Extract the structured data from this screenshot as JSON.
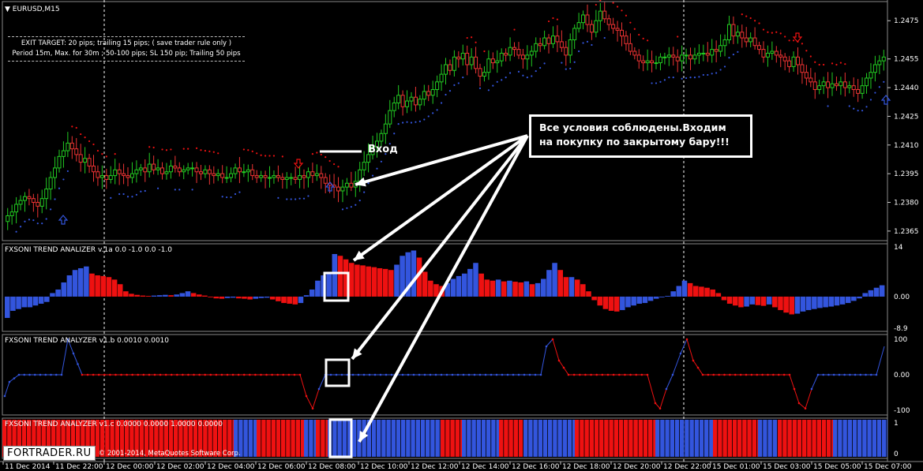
{
  "window": {
    "title": "EURUSD,M15"
  },
  "exit_note": {
    "line1": "EXIT TARGET: 20 pips; trailing 15 pips; ( save trader rule only )",
    "line2": "Period 15m, Max. for 30m ; 50-100 pips; SL 150 pip; Trailing 50 pips"
  },
  "annotations": {
    "entry_label": "Вход",
    "callout": "Все условия соблюдены.Входим на покупку по закрытому бару!!!"
  },
  "indicators": {
    "a": {
      "label": "FXSONI TREND ANALIZER v.1a 0.0 -1.0 0.0 -1.0"
    },
    "b": {
      "label": "FXSONI TREND ANALYZER v1.b 0.0010 0.0010"
    },
    "c": {
      "label": "FXSONI TREND ANALYZER v1.c 0.0000 0.0000 1.0000 0.0000"
    }
  },
  "watermark": {
    "logo": "FORTRADER.RU",
    "copyright": "© 2001-2014, MetaQuotes Software Corp."
  },
  "colors": {
    "bull": "#3355dd",
    "bear": "#ee1111",
    "candle_up": "#22cc22",
    "candle_down": "#ee3333",
    "background": "#000000",
    "grid": "#ffffff"
  },
  "chart_data": [
    {
      "type": "candlestick",
      "title": "EURUSD,M15",
      "y_ticks": [
        "1.2475",
        "1.2455",
        "1.2440",
        "1.2425",
        "1.2410",
        "1.2395",
        "1.2380",
        "1.2365"
      ],
      "ylim": [
        1.236,
        1.2485
      ],
      "x_ticks": [
        "11 Dec 2014",
        "11 Dec 22:00",
        "12 Dec 00:00",
        "12 Dec 02:00",
        "12 Dec 04:00",
        "12 Dec 06:00",
        "12 Dec 08:00",
        "12 Dec 10:00",
        "12 Dec 12:00",
        "12 Dec 14:00",
        "12 Dec 16:00",
        "12 Dec 18:00",
        "12 Dec 20:00",
        "12 Dec 22:00",
        "15 Dec 01:00",
        "15 Dec 03:00",
        "15 Dec 05:00",
        "15 Dec 07:00"
      ],
      "closes": [
        1.2373,
        1.2375,
        1.2379,
        1.2381,
        1.2383,
        1.2382,
        1.238,
        1.2378,
        1.2382,
        1.2387,
        1.2393,
        1.2398,
        1.2404,
        1.2407,
        1.2411,
        1.2408,
        1.2405,
        1.2401,
        1.2403,
        1.2399,
        1.2396,
        1.2393,
        1.2394,
        1.2392,
        1.2394,
        1.2397,
        1.2395,
        1.2394,
        1.2393,
        1.2395,
        1.2397,
        1.2398,
        1.2396,
        1.24,
        1.2397,
        1.2398,
        1.2395,
        1.2396,
        1.2399,
        1.2398,
        1.2396,
        1.2397,
        1.2398,
        1.2398,
        1.2396,
        1.2395,
        1.2397,
        1.2395,
        1.2394,
        1.2395,
        1.2393,
        1.2393,
        1.2395,
        1.2398,
        1.2396,
        1.2396,
        1.2397,
        1.2394,
        1.2393,
        1.2394,
        1.2393,
        1.2393,
        1.2394,
        1.2393,
        1.2392,
        1.2393,
        1.2393,
        1.2392,
        1.2394,
        1.2393,
        1.2396,
        1.2394,
        1.2395,
        1.2393,
        1.239,
        1.2389,
        1.2388,
        1.2386,
        1.2388,
        1.239,
        1.2388,
        1.2391,
        1.2397,
        1.2401,
        1.2405,
        1.2409,
        1.2412,
        1.2416,
        1.2421,
        1.2428,
        1.2432,
        1.2436,
        1.243,
        1.2433,
        1.2435,
        1.2431,
        1.2434,
        1.2438,
        1.2436,
        1.2439,
        1.2443,
        1.2447,
        1.2452,
        1.2449,
        1.2456,
        1.2455,
        1.2458,
        1.2452,
        1.2456,
        1.245,
        1.2446,
        1.2448,
        1.2455,
        1.2453,
        1.2454,
        1.2458,
        1.2457,
        1.2461,
        1.246,
        1.2457,
        1.2455,
        1.2457,
        1.2459,
        1.2463,
        1.2462,
        1.2466,
        1.2463,
        1.2467,
        1.2464,
        1.2461,
        1.2457,
        1.2465,
        1.2471,
        1.2474,
        1.2478,
        1.2473,
        1.2469,
        1.2475,
        1.248,
        1.2476,
        1.2473,
        1.2471,
        1.247,
        1.2467,
        1.2463,
        1.2459,
        1.2457,
        1.2454,
        1.2453,
        1.2454,
        1.2453,
        1.2453,
        1.2456,
        1.2456,
        1.2457,
        1.2456,
        1.2454,
        1.2457,
        1.2457,
        1.2455,
        1.2457,
        1.2458,
        1.2458,
        1.2457,
        1.246,
        1.2459,
        1.2462,
        1.2465,
        1.2473,
        1.2467,
        1.2469,
        1.2466,
        1.2464,
        1.2466,
        1.2462,
        1.246,
        1.2456,
        1.2458,
        1.2459,
        1.2457,
        1.2456,
        1.2454,
        1.2451,
        1.2456,
        1.2452,
        1.2448,
        1.2445,
        1.2443,
        1.2439,
        1.2441,
        1.2443,
        1.244,
        1.2442,
        1.2441,
        1.2443,
        1.244,
        1.2441,
        1.2439,
        1.2437,
        1.2441,
        1.2445,
        1.2448,
        1.2452,
        1.2454,
        1.2456
      ]
    },
    {
      "type": "bar",
      "title": "FXSONI TREND ANALIZER v.1a",
      "y_ticks": [
        "14",
        "0.00",
        "-8.9"
      ],
      "ylim": [
        -8.9,
        14
      ],
      "values": [
        -6,
        -4,
        -3.5,
        -3,
        -3,
        -2.5,
        -2,
        -1.5,
        1,
        2,
        4,
        6,
        7.5,
        8,
        8.5,
        6.5,
        6,
        5.8,
        5.5,
        4.8,
        3.5,
        1.5,
        0.8,
        0.5,
        0.3,
        0.2,
        0.3,
        0.4,
        0.5,
        0.4,
        0.6,
        1,
        1.5,
        1,
        0.6,
        0.3,
        -0.2,
        -0.5,
        -0.6,
        -0.4,
        -0.3,
        -0.5,
        -0.6,
        -0.8,
        -0.6,
        -0.4,
        -0.3,
        -0.8,
        -1.3,
        -1.8,
        -2,
        -2.2,
        -1.8,
        0.4,
        2,
        4.5,
        6,
        7,
        12,
        11.5,
        10.5,
        9.5,
        9,
        8.8,
        8.5,
        8.3,
        8,
        7.8,
        7.5,
        9,
        11.5,
        12.5,
        13,
        11,
        7,
        4.5,
        3.5,
        3,
        3.8,
        5,
        5.8,
        6.5,
        7.8,
        9.5,
        6.5,
        4.8,
        4.5,
        4.8,
        4.3,
        4.5,
        4.2,
        4,
        4.3,
        3.5,
        3.8,
        5,
        7.5,
        9.5,
        7.5,
        5.5,
        5.5,
        4.8,
        3.5,
        1.5,
        -1,
        -2.5,
        -3.5,
        -4,
        -4.2,
        -3.8,
        -3,
        -2.5,
        -2,
        -1.8,
        -1.2,
        -0.6,
        -0.2,
        0.2,
        1.5,
        3,
        4.5,
        3.8,
        3,
        2.8,
        2.5,
        2,
        1,
        -1,
        -2,
        -2.5,
        -3,
        -2.8,
        -2.2,
        -2.4,
        -2.6,
        -2.2,
        -3,
        -3.8,
        -4.5,
        -5,
        -4.8,
        -4.2,
        -3.8,
        -3.5,
        -3.2,
        -3,
        -2.8,
        -2.5,
        -2.2,
        -1.8,
        -1.2,
        -0.5,
        1,
        1.8,
        2.5,
        3.2
      ]
    },
    {
      "type": "line",
      "title": "FXSONI TREND ANALYZER v1.b",
      "y_ticks": [
        "100",
        "0.00",
        "-100"
      ],
      "ylim": [
        -100,
        100
      ]
    },
    {
      "type": "bar",
      "title": "FXSONI TREND ANALYZER v1.c",
      "y_ticks": [
        "1",
        "0"
      ],
      "ylim": [
        0,
        1
      ]
    }
  ]
}
